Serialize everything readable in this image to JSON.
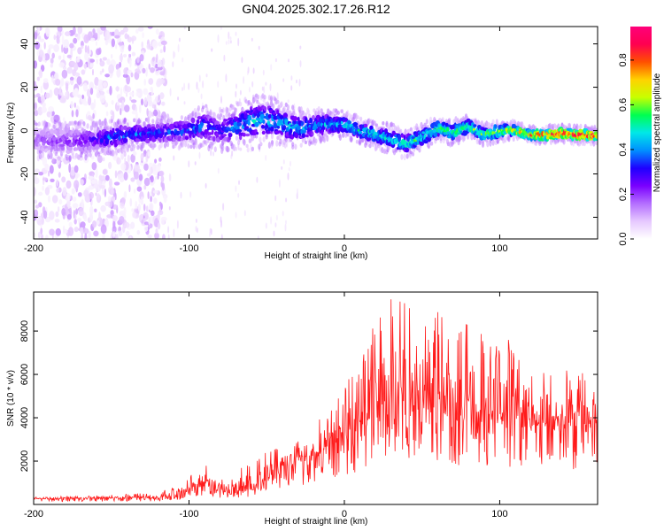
{
  "title": "GN04.2025.302.17.26.R12",
  "chart_data": [
    {
      "type": "heatmap",
      "xlabel": "Height of straight line (km)",
      "ylabel": "Frequency (Hz)",
      "xlim": [
        -200,
        163
      ],
      "ylim": [
        -50,
        48
      ],
      "xticks": [
        -200,
        -100,
        0,
        100
      ],
      "yticks": [
        -40,
        -20,
        0,
        20,
        40
      ],
      "colorbar": {
        "label": "Normalized spectral amplitude",
        "range": [
          0,
          0.95
        ],
        "ticks": [
          0.0,
          0.2,
          0.4,
          0.6,
          0.8
        ],
        "colors": [
          "#ffffff",
          "#e6c8ff",
          "#b46eff",
          "#7a00ff",
          "#1e00ff",
          "#0090ff",
          "#00e8e8",
          "#00ff50",
          "#c8ff00",
          "#ffd200",
          "#ff5000",
          "#ff0050",
          "#ff007a"
        ]
      },
      "ridge": {
        "x": [
          -200,
          -180,
          -160,
          -150,
          -140,
          -120,
          -100,
          -90,
          -80,
          -70,
          -60,
          -50,
          -40,
          -30,
          -20,
          -10,
          0,
          10,
          20,
          30,
          40,
          50,
          60,
          70,
          80,
          90,
          100,
          110,
          120,
          130,
          140,
          150,
          163
        ],
        "y": [
          -4,
          -5,
          -4,
          -3,
          -2,
          -1,
          0,
          2,
          0,
          2,
          4,
          5,
          3,
          1,
          2,
          3,
          3,
          0,
          -2,
          -4,
          -6,
          -3,
          1,
          -1,
          2,
          -2,
          0,
          0,
          -2,
          -2,
          -1,
          -2,
          -2
        ],
        "amplitude": [
          0.18,
          0.22,
          0.3,
          0.42,
          0.4,
          0.38,
          0.38,
          0.4,
          0.32,
          0.42,
          0.46,
          0.48,
          0.48,
          0.48,
          0.44,
          0.46,
          0.5,
          0.5,
          0.52,
          0.5,
          0.52,
          0.56,
          0.6,
          0.58,
          0.6,
          0.64,
          0.66,
          0.72,
          0.8,
          0.86,
          0.88,
          0.9,
          0.92
        ],
        "halfwidth_hz": [
          9,
          9,
          8,
          8,
          7,
          7,
          8,
          10,
          10,
          11,
          13,
          12,
          10,
          9,
          8,
          7,
          6,
          6,
          6,
          7,
          7,
          6,
          6,
          6,
          5,
          5,
          5,
          4,
          4,
          4,
          4,
          4,
          4
        ]
      },
      "noise_region_x": [
        -200,
        -115
      ]
    },
    {
      "type": "line",
      "xlabel": "Height of straight line (km)",
      "ylabel": "SNR (10 * v/v)",
      "xlim": [
        -200,
        163
      ],
      "ylim": [
        0,
        9800
      ],
      "xticks": [
        -200,
        -100,
        0,
        100
      ],
      "yticks": [
        2000,
        4000,
        6000,
        8000
      ],
      "color": "#ff1a1a",
      "series": [
        {
          "name": "SNR",
          "x": [
            -200,
            -180,
            -160,
            -140,
            -120,
            -110,
            -100,
            -95,
            -90,
            -85,
            -80,
            -75,
            -70,
            -65,
            -60,
            -55,
            -50,
            -45,
            -40,
            -35,
            -30,
            -25,
            -20,
            -15,
            -10,
            -5,
            0,
            5,
            10,
            15,
            20,
            25,
            30,
            35,
            40,
            45,
            50,
            55,
            60,
            65,
            70,
            75,
            80,
            85,
            90,
            95,
            100,
            105,
            110,
            115,
            120,
            125,
            130,
            135,
            140,
            145,
            150,
            155,
            163
          ],
          "mean": [
            250,
            260,
            270,
            290,
            300,
            350,
            600,
            800,
            900,
            700,
            600,
            550,
            600,
            700,
            650,
            900,
            1100,
            1300,
            1400,
            1600,
            1700,
            1900,
            2000,
            2300,
            2500,
            2700,
            2900,
            3000,
            3200,
            3400,
            3600,
            3700,
            3900,
            4000,
            4100,
            4000,
            4200,
            4000,
            4100,
            3900,
            3900,
            3800,
            3800,
            3700,
            3700,
            3700,
            3600,
            3600,
            3500,
            3500,
            3500,
            3400,
            3400,
            3400,
            3300,
            3300,
            3300,
            3300,
            3200
          ],
          "peak": [
            350,
            380,
            420,
            500,
            550,
            800,
            1300,
            1600,
            1900,
            1500,
            1400,
            1000,
            1400,
            1800,
            1800,
            2100,
            2700,
            2600,
            2700,
            3000,
            3200,
            3600,
            3800,
            4200,
            4500,
            5000,
            5500,
            6100,
            6500,
            7600,
            8600,
            9000,
            9700,
            9300,
            9800,
            9500,
            9800,
            8000,
            9300,
            8500,
            9200,
            8000,
            8600,
            7800,
            8200,
            7500,
            7200,
            7800,
            7000,
            6900,
            6800,
            6900,
            6600,
            6400,
            6300,
            6200,
            6000,
            6100,
            5800
          ]
        }
      ]
    }
  ]
}
